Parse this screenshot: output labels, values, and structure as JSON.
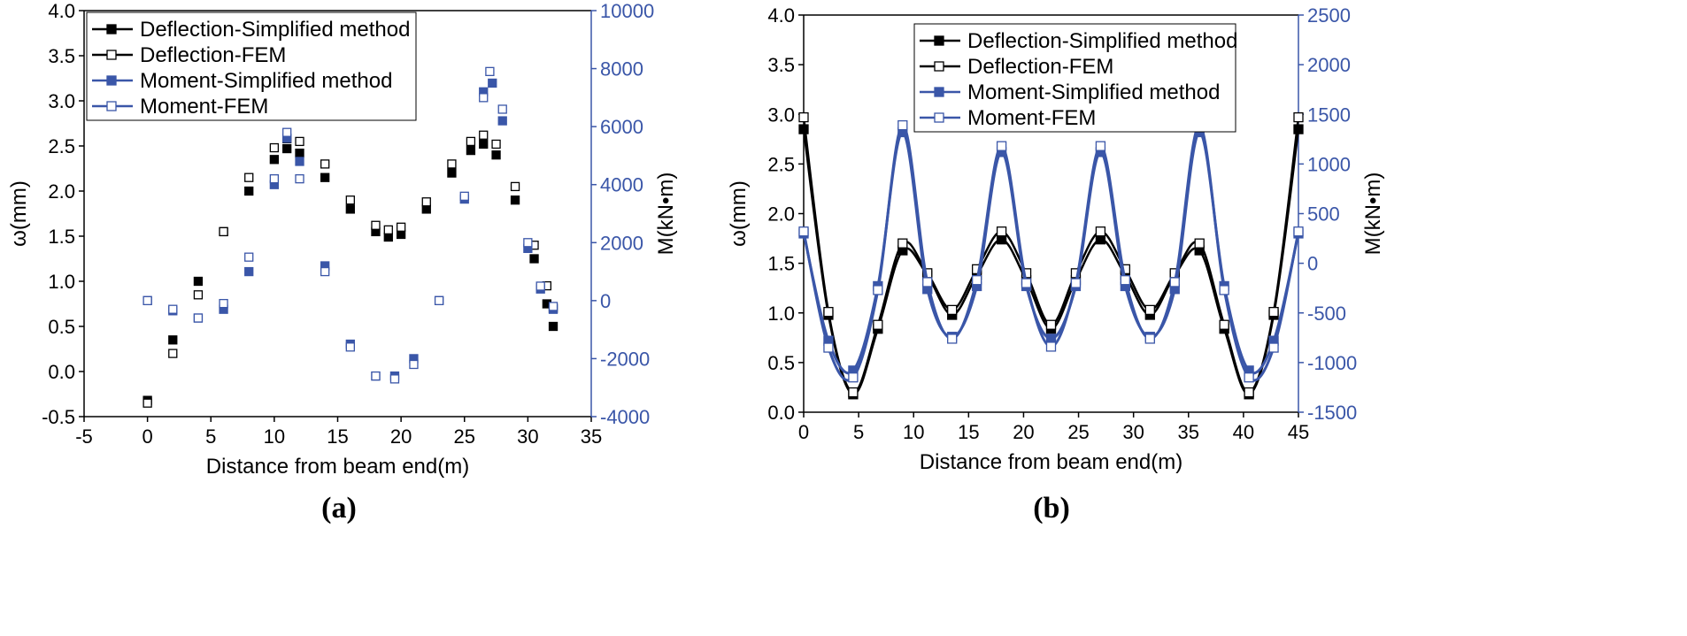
{
  "colors": {
    "black": "#000000",
    "blue": "#3a56a8",
    "background": "#ffffff"
  },
  "chart_data": [
    {
      "type": "line",
      "panel_label": "(a)",
      "xlabel": "Distance from beam end(m)",
      "ylabel": "ω(mm)",
      "y2label": "M(kN•m)",
      "xlim": [
        -5,
        35
      ],
      "ylim": [
        -0.5,
        4.0
      ],
      "y2lim": [
        -4000,
        10000
      ],
      "xticks": [
        -5,
        0,
        5,
        10,
        15,
        20,
        25,
        30,
        35
      ],
      "yticks": [
        -0.5,
        0.0,
        0.5,
        1.0,
        1.5,
        2.0,
        2.5,
        3.0,
        3.5,
        4.0
      ],
      "y2ticks": [
        -4000,
        -2000,
        0,
        2000,
        4000,
        6000,
        8000,
        10000
      ],
      "xtick_labels": [
        "-5",
        "0",
        "5",
        "10",
        "15",
        "20",
        "25",
        "30",
        "35"
      ],
      "ytick_labels": [
        "-0.5",
        "0.0",
        "0.5",
        "1.0",
        "1.5",
        "2.0",
        "2.5",
        "3.0",
        "3.5",
        "4.0"
      ],
      "y2tick_labels": [
        "-4000",
        "-2000",
        "0",
        "2000",
        "4000",
        "6000",
        "8000",
        "10000"
      ],
      "legend": [
        "Deflection-Simplified method",
        "Deflection-FEM",
        "Moment-Simplified method",
        "Moment-FEM"
      ],
      "legend_position": "top-left",
      "series": [
        {
          "name": "Deflection-Simplified method",
          "axis": "left",
          "marker": "filled-square",
          "color": "black",
          "x": [
            0.0,
            2.0,
            4.0,
            6.0,
            8.0,
            10.0,
            11.0,
            12.0,
            14.0,
            16.0,
            18.0,
            19.0,
            20.0,
            22.0,
            24.0,
            25.5,
            26.5,
            27.5,
            29.0,
            30.5,
            31.5,
            32.0
          ],
          "y": [
            -0.32,
            0.35,
            1.0,
            1.55,
            2.0,
            2.35,
            2.47,
            2.42,
            2.15,
            1.8,
            1.55,
            1.49,
            1.52,
            1.8,
            2.2,
            2.45,
            2.52,
            2.4,
            1.9,
            1.25,
            0.75,
            0.5
          ]
        },
        {
          "name": "Deflection-FEM",
          "axis": "left",
          "marker": "open-square",
          "color": "black",
          "x": [
            0.0,
            2.0,
            4.0,
            6.0,
            8.0,
            10.0,
            11.0,
            12.0,
            14.0,
            16.0,
            18.0,
            19.0,
            20.0,
            22.0,
            24.0,
            25.5,
            26.5,
            27.5,
            29.0,
            30.5,
            31.5,
            32.0
          ],
          "y": [
            -0.35,
            0.2,
            0.85,
            1.55,
            2.15,
            2.48,
            2.58,
            2.55,
            2.3,
            1.9,
            1.62,
            1.57,
            1.6,
            1.88,
            2.3,
            2.55,
            2.62,
            2.52,
            2.05,
            1.4,
            0.95,
            0.7
          ]
        },
        {
          "name": "Moment-Simplified method",
          "axis": "right",
          "marker": "filled-square",
          "color": "blue",
          "x": [
            0.0,
            2.0,
            4.0,
            6.0,
            8.0,
            10.0,
            11.0,
            12.0,
            14.0,
            16.0,
            18.0,
            19.5,
            21.0,
            23.0,
            25.0,
            26.5,
            27.2,
            28.0,
            30.0,
            31.0,
            32.0
          ],
          "y": [
            0,
            -350,
            -600,
            -300,
            1000,
            4000,
            5600,
            4800,
            1200,
            -1500,
            -2600,
            -2600,
            -2000,
            0,
            3500,
            7200,
            7500,
            6200,
            1800,
            400,
            -300
          ]
        },
        {
          "name": "Moment-FEM",
          "axis": "right",
          "marker": "open-square",
          "color": "blue",
          "x": [
            0.0,
            2.0,
            4.0,
            6.0,
            8.0,
            10.0,
            11.0,
            12.0,
            14.0,
            16.0,
            18.0,
            19.5,
            21.0,
            23.0,
            25.0,
            26.5,
            27.0,
            28.0,
            30.0,
            31.0,
            32.0
          ],
          "y": [
            0,
            -300,
            -600,
            -100,
            1500,
            4200,
            5800,
            4200,
            1000,
            -1600,
            -2600,
            -2700,
            -2200,
            0,
            3600,
            7000,
            7900,
            6600,
            2000,
            500,
            -200
          ]
        }
      ]
    },
    {
      "type": "line",
      "panel_label": "(b)",
      "xlabel": "Distance from beam end(m)",
      "ylabel": "ω(mm)",
      "y2label": "M(kN•m)",
      "xlim": [
        0,
        45
      ],
      "ylim": [
        0.0,
        4.0
      ],
      "y2lim": [
        -1500,
        2500
      ],
      "xticks": [
        0,
        5,
        10,
        15,
        20,
        25,
        30,
        35,
        40,
        45
      ],
      "yticks": [
        0.0,
        0.5,
        1.0,
        1.5,
        2.0,
        2.5,
        3.0,
        3.5,
        4.0
      ],
      "y2ticks": [
        -1500,
        -1000,
        -500,
        0,
        500,
        1000,
        1500,
        2000,
        2500
      ],
      "xtick_labels": [
        "0",
        "5",
        "10",
        "15",
        "20",
        "25",
        "30",
        "35",
        "40",
        "45"
      ],
      "ytick_labels": [
        "0.0",
        "0.5",
        "1.0",
        "1.5",
        "2.0",
        "2.5",
        "3.0",
        "3.5",
        "4.0"
      ],
      "y2tick_labels": [
        "-1500",
        "-1000",
        "-500",
        "0",
        "500",
        "1000",
        "1500",
        "2000",
        "2500"
      ],
      "legend": [
        "Deflection-Simplified method",
        "Deflection-FEM",
        "Moment-Simplified method",
        "Moment-FEM"
      ],
      "legend_position": "top-center",
      "series": [
        {
          "name": "Deflection-Simplified method",
          "axis": "left",
          "marker": "filled-square",
          "color": "black",
          "x": [
            0,
            2.25,
            4.5,
            6.75,
            9,
            11.25,
            13.5,
            15.75,
            18,
            20.25,
            22.5,
            24.75,
            27,
            29.25,
            31.5,
            33.75,
            36,
            38.25,
            40.5,
            42.75,
            45
          ],
          "y": [
            2.85,
            0.98,
            0.18,
            0.84,
            1.63,
            1.38,
            0.98,
            1.38,
            1.74,
            1.33,
            0.84,
            1.33,
            1.74,
            1.38,
            0.98,
            1.38,
            1.63,
            0.84,
            0.18,
            0.98,
            2.85
          ]
        },
        {
          "name": "Deflection-FEM",
          "axis": "left",
          "marker": "open-square",
          "color": "black",
          "x": [
            0,
            2.25,
            4.5,
            6.75,
            9,
            11.25,
            13.5,
            15.75,
            18,
            20.25,
            22.5,
            24.75,
            27,
            29.25,
            31.5,
            33.75,
            36,
            38.25,
            40.5,
            42.75,
            45
          ],
          "y": [
            2.97,
            1.01,
            0.2,
            0.88,
            1.7,
            1.4,
            1.03,
            1.44,
            1.82,
            1.4,
            0.88,
            1.4,
            1.82,
            1.44,
            1.03,
            1.4,
            1.7,
            0.88,
            0.2,
            1.01,
            2.97
          ]
        },
        {
          "name": "Moment-Simplified method",
          "axis": "right",
          "marker": "filled-square",
          "color": "blue",
          "x": [
            0,
            2.25,
            4.5,
            6.75,
            9,
            11.25,
            13.5,
            15.75,
            18,
            20.25,
            22.5,
            24.75,
            27,
            29.25,
            31.5,
            33.75,
            36,
            38.25,
            40.5,
            42.75,
            45
          ],
          "y": [
            300,
            -780,
            -1080,
            -230,
            1320,
            -260,
            -740,
            -230,
            1120,
            -230,
            -760,
            -230,
            1120,
            -230,
            -740,
            -260,
            1320,
            -230,
            -1080,
            -780,
            300
          ]
        },
        {
          "name": "Moment-FEM",
          "axis": "right",
          "marker": "open-square",
          "color": "blue",
          "x": [
            0,
            2.25,
            4.5,
            6.75,
            9,
            11.25,
            13.5,
            15.75,
            18,
            20.25,
            22.5,
            24.75,
            27,
            29.25,
            31.5,
            33.75,
            36,
            38.25,
            40.5,
            42.75,
            45
          ],
          "y": [
            320,
            -850,
            -1150,
            -270,
            1390,
            -190,
            -760,
            -170,
            1180,
            -200,
            -840,
            -200,
            1180,
            -170,
            -760,
            -190,
            1390,
            -270,
            -1150,
            -850,
            320
          ]
        }
      ]
    }
  ]
}
